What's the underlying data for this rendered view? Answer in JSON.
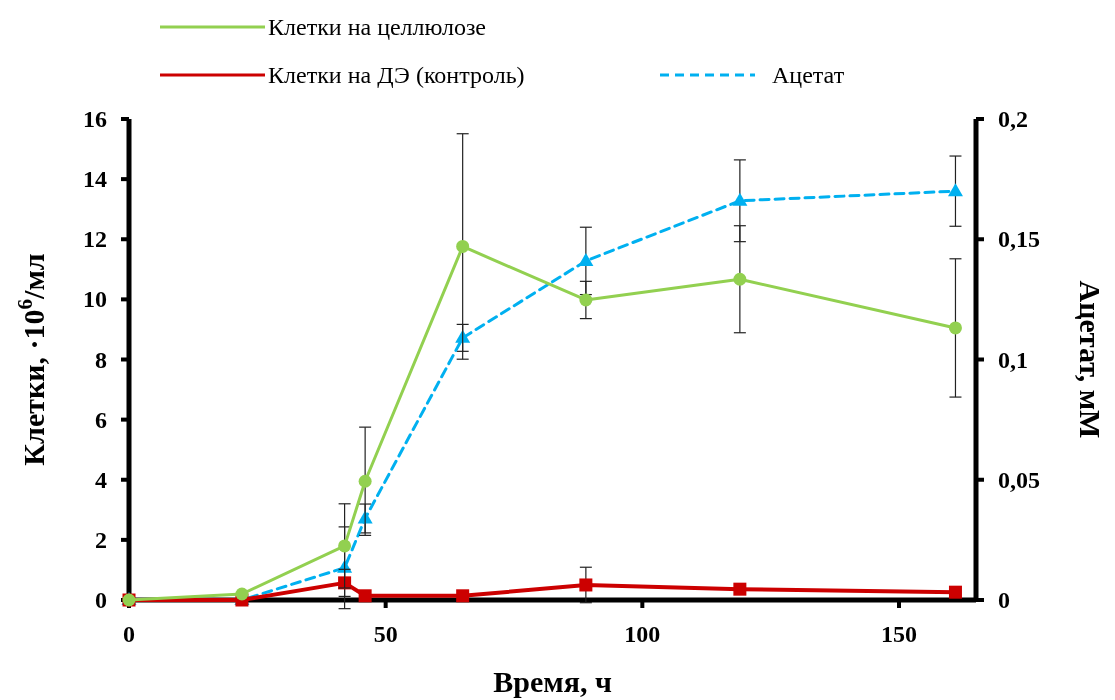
{
  "chart_data": {
    "type": "line",
    "xlabel": "Время, ч",
    "ylabel": "Клетки, ·10$^{6}$/мл",
    "y2label": "Ацетат, мМ",
    "xlim": [
      0,
      165
    ],
    "xticks": [
      0,
      50,
      100,
      150
    ],
    "ylim": [
      0,
      16
    ],
    "yticks": [
      0,
      2,
      4,
      6,
      8,
      10,
      12,
      14,
      16
    ],
    "y2lim": [
      0,
      0.2
    ],
    "y2ticks": [
      0,
      {
        "value": 0.05,
        "label": "0,05"
      },
      {
        "value": 0.1,
        "label": "0,1"
      },
      {
        "value": 0.15,
        "label": "0,15"
      },
      {
        "value": 0.2,
        "label": "0,2"
      }
    ],
    "legend": "top",
    "grid": false,
    "series": [
      {
        "name": "Клетки на целлюлозе",
        "color": "#92d050",
        "marker": "circle",
        "line_style": "solid",
        "x": [
          0,
          22,
          42,
          46,
          65,
          89,
          119,
          161
        ],
        "values": [
          0,
          0.2,
          1.8,
          3.95,
          11.76,
          9.98,
          10.67,
          9.05
        ],
        "errors": [
          null,
          null,
          1.4,
          1.8,
          3.75,
          0.62,
          1.78,
          2.3
        ]
      },
      {
        "name": "Клетки на ДЭ (контроль)",
        "color": "#cc0000",
        "marker": "square",
        "line_style": "solid",
        "x": [
          0,
          22,
          42,
          46,
          65,
          89,
          119,
          161
        ],
        "values": [
          0,
          0,
          0.57,
          0.14,
          0.14,
          0.5,
          0.36,
          0.26
        ],
        "errors": [
          null,
          null,
          0.45,
          null,
          null,
          0.59,
          null,
          null
        ]
      },
      {
        "name": "Ацетат",
        "color": "#00b0f0",
        "marker": "triangle",
        "line_style": "dashed",
        "axis": "y2",
        "x": [
          0,
          22,
          42,
          46,
          65,
          89,
          119,
          161
        ],
        "values": [
          0,
          0,
          0.0134,
          0.0339,
          0.109,
          0.141,
          0.166,
          0.17
        ],
        "errors": [
          null,
          null,
          0.017,
          0.006,
          0.0056,
          0.014,
          0.017,
          0.0146
        ]
      }
    ]
  }
}
